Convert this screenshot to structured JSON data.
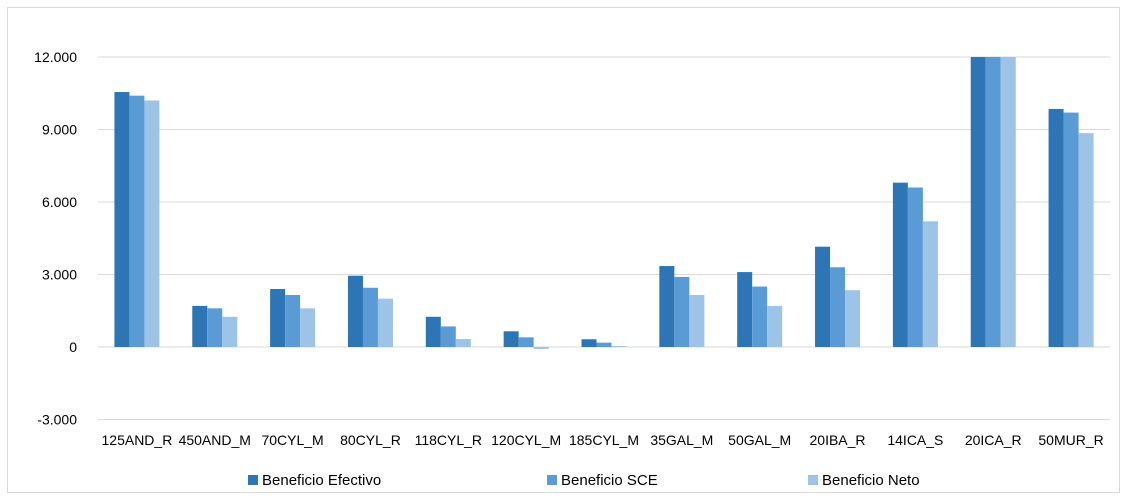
{
  "chart_data": {
    "type": "bar",
    "title": "",
    "xlabel": "",
    "ylabel": "",
    "ylim": [
      -3000,
      12000
    ],
    "yticks": [
      -3000,
      0,
      3000,
      6000,
      9000,
      12000
    ],
    "ytick_labels": [
      "-3.000",
      "0",
      "3.000",
      "6.000",
      "9.000",
      "12.000"
    ],
    "grid": "horizontal",
    "legend_position": "bottom",
    "categories": [
      "125AND_R",
      "450AND_M",
      "70CYL_M",
      "80CYL_R",
      "118CYL_R",
      "120CYL_M",
      "185CYL_M",
      "35GAL_M",
      "50GAL_M",
      "20IBA_R",
      "14ICA_S",
      "20ICA_R",
      "50MUR_R"
    ],
    "series": [
      {
        "name": "Beneficio Efectivo",
        "color": "#2e75b6",
        "values": [
          10550,
          1700,
          2400,
          2950,
          1250,
          650,
          320,
          3350,
          3100,
          4150,
          6800,
          12000,
          9850
        ]
      },
      {
        "name": "Beneficio SCE",
        "color": "#5b9bd5",
        "values": [
          10400,
          1600,
          2150,
          2450,
          850,
          400,
          180,
          2900,
          2500,
          3300,
          6600,
          12000,
          9700
        ]
      },
      {
        "name": "Beneficio Neto",
        "color": "#9dc3e6",
        "values": [
          10200,
          1250,
          1600,
          2000,
          330,
          -80,
          40,
          2150,
          1700,
          2350,
          5200,
          12000,
          8850
        ]
      }
    ]
  }
}
